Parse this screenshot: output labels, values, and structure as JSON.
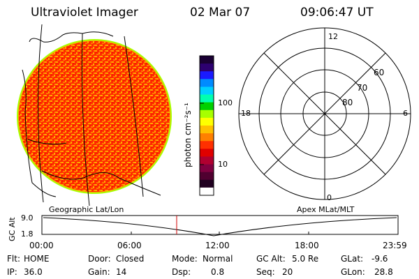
{
  "header": {
    "instrument": "Ultraviolet Imager",
    "date": "02 Mar 07",
    "time": "09:06:47 UT"
  },
  "colorbar": {
    "unit_label": "photon cm⁻²s⁻¹",
    "ticks": [
      "100",
      "10"
    ],
    "colors": [
      "#1a0033",
      "#2d0070",
      "#1a1aff",
      "#008bff",
      "#00d0ff",
      "#00ffb0",
      "#00d000",
      "#a8ff00",
      "#ffff00",
      "#ffc000",
      "#ff8000",
      "#ff3000",
      "#e00000",
      "#b00030",
      "#800040",
      "#500030",
      "#200020",
      "#ffffff"
    ]
  },
  "polar_plot": {
    "mlt_labels": {
      "top": "12",
      "left": "18",
      "right": "6",
      "bottom": "0"
    },
    "lat_labels": [
      "60",
      "70",
      "80"
    ]
  },
  "timeline": {
    "left_label": "Geographic Lat/Lon",
    "right_label": "Apex MLat/MLT",
    "axis_label": "GC Alt",
    "y_ticks": [
      "9.0",
      "1.8"
    ],
    "x_ticks": [
      "00:00",
      "06:00",
      "12:00",
      "18:00",
      "23:59"
    ]
  },
  "status": {
    "row1": [
      {
        "key": "Flt:",
        "value": "HOME"
      },
      {
        "key": "Door:",
        "value": "Closed"
      },
      {
        "key": "Mode:",
        "value": "Normal"
      },
      {
        "key": "GC Alt:",
        "value": "5.0 Re"
      },
      {
        "key": "GLat:",
        "value": "-9.6"
      }
    ],
    "row2": [
      {
        "key": "IP:",
        "value": "36.0"
      },
      {
        "key": "Gain:",
        "value": "14"
      },
      {
        "key": "Dsp:",
        "value": "0.8"
      },
      {
        "key": "Seq:",
        "value": "20"
      },
      {
        "key": "GLon:",
        "value": "28.8"
      }
    ]
  }
}
